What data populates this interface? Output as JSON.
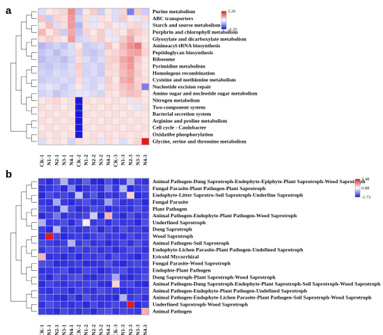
{
  "panels": [
    {
      "letter": "a",
      "chart_data": {
        "type": "heatmap",
        "columns": [
          "CK-1",
          "N1-1",
          "N2-1",
          "N3-1",
          "N4-1",
          "CK-2",
          "N1-2",
          "N2-2",
          "N3-2",
          "N4-2",
          "CK-3",
          "N1-3",
          "N2-3",
          "N3-3",
          "N4-3"
        ],
        "rows": [
          "Purine metabolism",
          "ABC transporters",
          "Starch and sourse metabolism",
          "Porphrin and chlorophyll metabolism",
          "Glyoxylate and dicarboxylate metabolism",
          "Aminoacyl-tRNA biosynthesis",
          "Peptidoglycan biosynthesis",
          "Ribosome",
          "Pyrimidine metabolism",
          "Homologous recombination",
          "Cysteine and methionine metabolism",
          "Nucleotide excision repair",
          "Amino sugar and nucleotide sugar metabolism",
          "Nitrogen metabolism",
          "Two-component system",
          "Bacterial secretion system",
          "Arginine and proline metabolism",
          "Cell cycle - Caulobacter",
          "Oxidatibe phosphorylation",
          "Glycine, serine and threonine metabolism"
        ],
        "values": [
          [
            -0.3,
            0.2,
            0.3,
            0.4,
            1.4,
            -0.6,
            0.2,
            0.5,
            -0.5,
            0.2,
            -0.3,
            0.4,
            -1.6,
            0.5,
            -0.5
          ],
          [
            0.6,
            -0.5,
            0.4,
            0.3,
            1.2,
            -0.4,
            0.3,
            -0.2,
            0.3,
            0.2,
            -0.3,
            0.5,
            0.2,
            -0.2,
            0.3
          ],
          [
            0.2,
            0.7,
            -0.3,
            0.3,
            1.2,
            -0.8,
            0.3,
            -0.2,
            0.2,
            0.4,
            0.2,
            -0.2,
            0.3,
            0.4,
            -0.2
          ],
          [
            0.8,
            0.2,
            0.5,
            -0.5,
            1.0,
            -0.6,
            0.4,
            0.2,
            0.5,
            -0.2,
            0.3,
            0.2,
            0.7,
            0.5,
            0.3
          ],
          [
            0.3,
            0.5,
            0.3,
            0.2,
            1.2,
            -0.4,
            -0.3,
            0.3,
            0.5,
            0.2,
            -0.2,
            0.5,
            1.0,
            0.3,
            0.2
          ],
          [
            -0.8,
            -0.6,
            -0.4,
            -0.6,
            -0.3,
            0.2,
            -0.5,
            -0.4,
            -0.3,
            0.6,
            0.2,
            0.8,
            1.3,
            1.7,
            0.3
          ],
          [
            -0.6,
            -0.4,
            -0.7,
            -0.4,
            -0.3,
            0.4,
            -0.5,
            -0.6,
            -0.4,
            0.3,
            0.4,
            0.6,
            1.0,
            1.1,
            0.4
          ],
          [
            -0.7,
            -0.5,
            -0.5,
            -0.7,
            -0.4,
            0.3,
            -0.3,
            -0.5,
            -0.3,
            0.4,
            0.5,
            1.0,
            1.3,
            0.6,
            0.2
          ],
          [
            -0.5,
            -0.6,
            -0.4,
            -0.5,
            -0.3,
            0.5,
            -0.4,
            -0.3,
            -0.5,
            0.4,
            0.3,
            0.8,
            1.2,
            0.4,
            0.2
          ],
          [
            -0.4,
            -0.5,
            -0.3,
            -0.4,
            -0.3,
            0.4,
            -0.4,
            -0.3,
            -0.5,
            0.3,
            0.3,
            0.7,
            1.0,
            0.5,
            0.2
          ],
          [
            -0.5,
            -0.4,
            -0.4,
            -0.3,
            -0.4,
            0.3,
            -0.3,
            -0.4,
            -0.3,
            0.5,
            0.2,
            0.9,
            1.1,
            0.4,
            0.3
          ],
          [
            -0.3,
            -0.2,
            -0.3,
            -0.5,
            -0.3,
            0.2,
            -0.3,
            -0.4,
            -0.2,
            0.4,
            0.3,
            0.6,
            0.8,
            0.5,
            -1.6
          ],
          [
            -0.4,
            -0.3,
            -0.6,
            -0.4,
            -0.3,
            -0.2,
            -0.2,
            -0.3,
            -0.4,
            0.3,
            0.2,
            0.5,
            0.7,
            0.6,
            0.2
          ],
          [
            0.2,
            0.3,
            0.4,
            0.2,
            0.3,
            -3.26,
            0.3,
            0.2,
            0.3,
            0.2,
            0.3,
            0.2,
            -0.2,
            0.3,
            0.2
          ],
          [
            0.3,
            0.2,
            0.3,
            0.2,
            0.3,
            -3.26,
            0.2,
            0.3,
            0.2,
            0.3,
            0.2,
            0.3,
            0.2,
            -0.2,
            0.3
          ],
          [
            0.2,
            0.3,
            0.2,
            0.3,
            0.2,
            -3.26,
            0.3,
            0.2,
            0.3,
            0.2,
            0.3,
            0.2,
            0.3,
            0.2,
            0.2
          ],
          [
            0.3,
            0.2,
            0.3,
            0.2,
            0.3,
            -3.26,
            0.2,
            0.3,
            0.2,
            0.3,
            0.2,
            0.3,
            0.2,
            0.3,
            0.2
          ],
          [
            0.2,
            0.3,
            0.2,
            0.3,
            0.2,
            -3.26,
            0.3,
            0.2,
            0.3,
            0.2,
            0.3,
            0.2,
            0.3,
            0.2,
            0.3
          ],
          [
            0.3,
            0.2,
            0.3,
            0.2,
            0.3,
            -3.26,
            0.2,
            0.3,
            0.2,
            0.3,
            0.2,
            0.3,
            0.2,
            0.3,
            0.2
          ],
          [
            -0.3,
            0.2,
            0.3,
            0.2,
            -0.4,
            0.3,
            0.2,
            0.3,
            -0.2,
            0.3,
            0.2,
            -0.3,
            0.2,
            0.4,
            3.26
          ]
        ],
        "color_scale": {
          "min": -3.26,
          "max": 3.26,
          "ticks": [
            "3.26",
            "-3.26"
          ],
          "low_color": "#1a1adb",
          "mid_color": "#ffffff",
          "high_color": "#e31a1a"
        },
        "legend_position": "top-right"
      }
    },
    {
      "letter": "b",
      "chart_data": {
        "type": "heatmap",
        "columns": [
          "CK-1",
          "N1-1",
          "N2-1",
          "N3-1",
          "N4-1",
          "CK-2",
          "N1-2",
          "N2-2",
          "N3-2",
          "N4-2",
          "CK-3",
          "N1-3",
          "N2-3",
          "N3-3",
          "N4-3"
        ],
        "rows": [
          "Animal Pathogen-Dung Saprotroph-Endophyte-Epiphyte-Plant Saprotroph-Wood Saprotroph",
          "Fungal Parasite-Plant Pathogen-Plant Saprotroph",
          "Endophyte-Litter Saprotro-Soil Saprotroph-Underfine Saprotroph",
          "Fungal Parasite",
          "Plant Pathogen",
          "Animal Pathogen-Endophyte-Plant Pathogen-Wood Saprotroph",
          "Underfined Saprotroph",
          "Dung Saprotroph",
          "Wood Saprotroph",
          "Animal Pathogen-Soil Saprotroph",
          "Endophyte-Lichen Parasite-Plant Pathogen-Undefined Saprotroph",
          "Ericoid Mycorrhizal",
          "Fungal Parasite-Wood Saprotroph",
          "Endophte-Plant Pathogen",
          "Dung Saprotroph-Plant Saprotroph-Wood Saprotroph",
          "Animal Pathogen-Dung Saprotroph-Endophyte-Plant Saprotroph-Soil Saprotroph-Wood Saprotroph",
          "Animal Pathogen-Endophyte-Plant Pathogen-Undefined Saprotroph",
          "Animal Pathogen-Endophyte-Lichen Parasite-Plant Pathogen-Soil Saprotroph-Wood Saprotroph",
          "Underfined Saprotroph-Wood Saprotroph",
          "Animal Pathogen"
        ],
        "values": [
          [
            -1.2,
            -1.5,
            -1.0,
            0.2,
            -1.3,
            -1.4,
            -0.8,
            -1.5,
            -1.6,
            -1.0,
            -1.5,
            -1.3,
            0.1,
            -1.2,
            -1.4
          ],
          [
            -1.4,
            -1.3,
            -1.1,
            -1.5,
            -0.3,
            -1.6,
            -1.3,
            -1.1,
            -1.4,
            -0.5,
            -1.3,
            0.3,
            -1.5,
            -1.2,
            -1.0
          ],
          [
            -1.5,
            -1.0,
            -1.3,
            -1.1,
            -1.4,
            0.4,
            -1.3,
            -0.9,
            -1.5,
            -1.2,
            -1.4,
            -1.0,
            1.2,
            -1.5,
            -1.3
          ],
          [
            -1.3,
            -1.4,
            0.1,
            -1.3,
            -1.5,
            -1.2,
            -1.0,
            -1.4,
            -1.3,
            0.0,
            -1.0,
            -1.4,
            -1.3,
            -1.1,
            -1.5
          ],
          [
            -1.0,
            -1.3,
            -1.4,
            0.3,
            -1.1,
            -1.5,
            -1.3,
            -1.0,
            -1.2,
            -1.5,
            -1.3,
            -1.2,
            -1.4,
            -1.0,
            -1.3
          ],
          [
            -1.5,
            -1.2,
            -0.5,
            -1.4,
            -1.2,
            -1.3,
            -1.1,
            0.5,
            -1.5,
            1.5,
            -1.2,
            -1.5,
            -1.0,
            -1.4,
            -1.2
          ],
          [
            0.2,
            -1.3,
            -1.2,
            -1.0,
            -1.5,
            -1.0,
            1.0,
            -1.3,
            -1.1,
            -1.4,
            -1.1,
            -1.3,
            -1.2,
            -1.5,
            -1.0
          ],
          [
            -1.2,
            -1.5,
            0.3,
            -1.3,
            -1.1,
            -1.4,
            -1.2,
            -1.0,
            -1.5,
            -1.1,
            -1.4,
            -1.0,
            -1.3,
            -1.2,
            -1.4
          ],
          [
            -1.4,
            3.48,
            -1.1,
            -1.5,
            -1.3,
            -1.2,
            -1.4,
            -1.2,
            -1.0,
            -1.3,
            -1.2,
            -1.4,
            -1.1,
            -1.3,
            -1.1
          ],
          [
            -1.1,
            -1.2,
            -1.4,
            -1.2,
            0.2,
            -1.3,
            -1.0,
            -1.4,
            -1.2,
            -1.5,
            -1.3,
            -1.1,
            -1.4,
            -1.0,
            -1.3
          ],
          [
            -1.3,
            -1.0,
            -1.2,
            -1.1,
            -1.4,
            -1.1,
            -1.3,
            -1.1,
            -1.4,
            -1.2,
            -1.5,
            -1.3,
            -1.0,
            -1.2,
            -1.4
          ],
          [
            1.5,
            -1.4,
            -1.3,
            -1.5,
            -1.2,
            -1.5,
            -1.2,
            -1.3,
            -1.1,
            -1.4,
            -1.0,
            -1.2,
            -1.3,
            -1.5,
            -1.1
          ],
          [
            -1.0,
            -1.1,
            -1.5,
            -1.4,
            -1.3,
            -1.2,
            -1.5,
            -1.4,
            -1.3,
            -1.0,
            -1.4,
            -1.5,
            -1.2,
            -1.1,
            -1.3
          ],
          [
            -1.4,
            -1.3,
            -1.2,
            -1.0,
            -1.5,
            -1.4,
            -1.1,
            -1.2,
            -1.5,
            -1.3,
            -1.1,
            -1.0,
            -1.4,
            -1.3,
            -1.2
          ],
          [
            -1.2,
            -1.5,
            -1.0,
            -1.3,
            -1.1,
            -1.0,
            -1.4,
            -1.5,
            -1.2,
            -1.1,
            0.1,
            -1.4,
            -1.5,
            -1.2,
            -1.0
          ],
          [
            -1.5,
            -1.1,
            -1.3,
            -1.4,
            -1.2,
            -1.3,
            -1.2,
            -1.1,
            -1.4,
            -1.5,
            1.2,
            -1.2,
            -1.1,
            -1.4,
            -1.5
          ],
          [
            -1.3,
            -1.4,
            -1.1,
            -1.2,
            -1.5,
            -1.1,
            -1.3,
            -1.4,
            -1.0,
            -1.2,
            -1.3,
            -1.5,
            -1.4,
            -1.2,
            -1.1
          ],
          [
            -1.1,
            -1.2,
            -1.4,
            -1.5,
            -1.1,
            -1.5,
            -1.0,
            -1.3,
            -1.3,
            -1.4,
            -1.5,
            0.2,
            -1.3,
            -1.1,
            -1.4
          ],
          [
            -1.4,
            -1.0,
            -1.2,
            -1.3,
            -1.4,
            -1.2,
            -1.5,
            -1.1,
            -1.4,
            -1.3,
            -1.1,
            -1.3,
            3.48,
            -1.5,
            -1.2
          ],
          [
            -1.2,
            -1.3,
            -1.5,
            -1.1,
            -1.3,
            -1.4,
            -1.2,
            -1.5,
            -1.1,
            -1.0,
            -1.4,
            -1.1,
            -1.2,
            -1.3,
            1.6
          ]
        ],
        "color_scale": {
          "min": -1.72,
          "mid": 0.88,
          "max": 3.48,
          "ticks": [
            "3.48",
            "0.88",
            "-1.72"
          ],
          "low_color": "#1a1adb",
          "mid_color": "#ffffff",
          "high_color": "#e31a1a"
        },
        "legend_position": "top-right"
      }
    }
  ]
}
